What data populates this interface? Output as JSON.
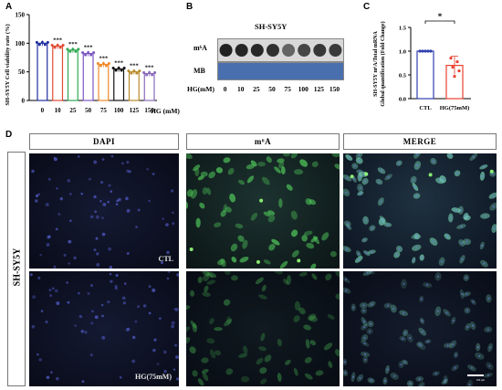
{
  "panel_labels": {
    "a": "A",
    "b": "B",
    "c": "C",
    "d": "D"
  },
  "colors": {
    "ctl_bar": "#2f3fae",
    "hg_bar": "#e8412e"
  },
  "chart_a": {
    "ylabel": "SH-SY5Y Cell viability rate (%)",
    "xlabel": "HG (mM)",
    "significance": "***"
  },
  "chart_data": [
    {
      "type": "bar",
      "categories": [
        "0",
        "10",
        "25",
        "50",
        "75",
        "100",
        "125",
        "150"
      ],
      "values": [
        100,
        95,
        88,
        82,
        63,
        55,
        50,
        47
      ],
      "ylabel": "SH-SY5Y Cell viability rate (%)",
      "xlabel": "HG (mM)",
      "ylim": [
        0,
        150
      ],
      "yticks": [
        0,
        50,
        100,
        150
      ],
      "significance": [
        "",
        "***",
        "***",
        "***",
        "***",
        "***",
        "***",
        "***"
      ],
      "colors": [
        "#1f2f9e",
        "#e24a33",
        "#33a853",
        "#7a56c2",
        "#ef8a2a",
        "#111111",
        "#b88a2a",
        "#8a6ab8"
      ]
    },
    {
      "type": "bar",
      "categories": [
        "CTL",
        "HG(75mM)"
      ],
      "values": [
        1.0,
        0.7
      ],
      "ylabel": "SH-SY5Y m6A/Total mRNA Global quantification (Fold Change)",
      "ylim": [
        0,
        1.5
      ],
      "yticks": [
        0.0,
        0.5,
        1.0,
        1.5
      ],
      "significance": "*"
    }
  ],
  "chart_c": {
    "ylabel_line1": "SH-SY5Y m⁶A/Total mRNA",
    "ylabel_line2": "Global quantification (Fold Change)",
    "significance": "*"
  },
  "blot": {
    "title": "SH-SY5Y",
    "row1_label": "m⁶A",
    "row2_label": "MB",
    "hg_label": "HG(mM)",
    "lanes": [
      "0",
      "10",
      "25",
      "50",
      "75",
      "100",
      "125",
      "150"
    ],
    "dot_intensity": [
      0.95,
      0.92,
      0.9,
      0.85,
      0.5,
      0.7,
      0.8,
      0.78
    ]
  },
  "imaging": {
    "columns": [
      "DAPI",
      "m⁶A",
      "MERGE"
    ],
    "row_label": "SH-SY5Y",
    "ctl_label": "CTL",
    "hg_label": "HG(75mM)",
    "scalebar_label": "100 μm"
  }
}
